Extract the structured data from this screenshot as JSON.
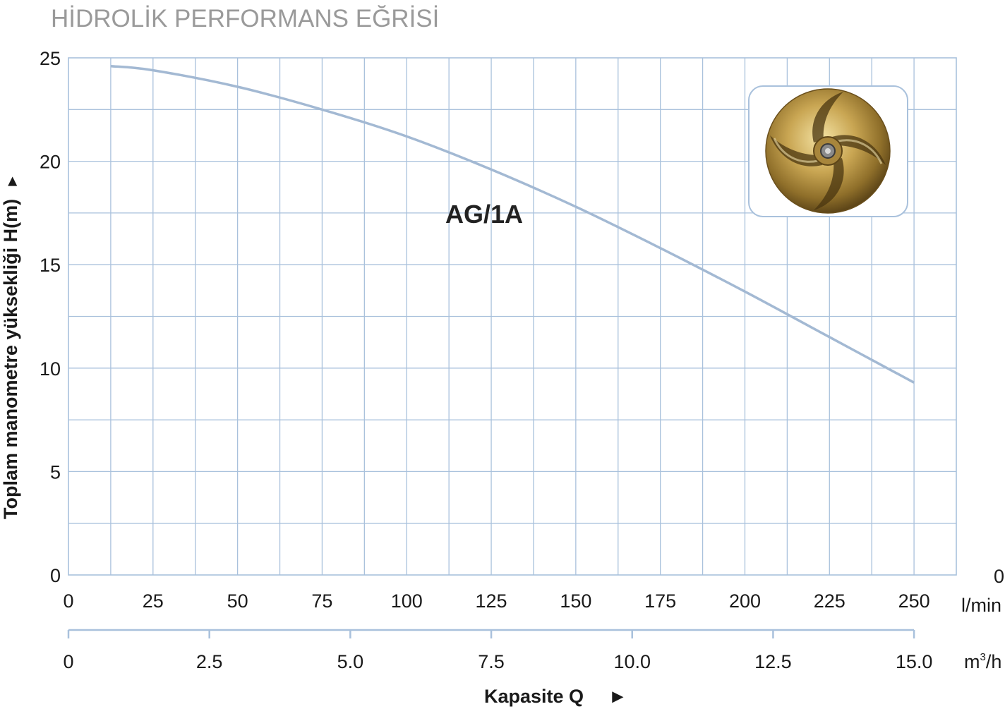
{
  "title": "HİDROLİK PERFORMANS EĞRİSİ",
  "colors": {
    "grid": "#a9c1dc",
    "curve": "#a3b9d3",
    "title": "#9a9a9a",
    "text": "#1a1a1a"
  },
  "chart_data": {
    "type": "line",
    "title": "HİDROLİK PERFORMANS EĞRİSİ",
    "ylabel": "Toplam manometre yüksekliği H(m)",
    "ylabel_arrow": "►",
    "xlabel": "Kapasite Q",
    "xlabel_arrow": "►",
    "x_unit": "l/min",
    "x2_unit_base": "m",
    "x2_unit_sup": "3",
    "x2_unit_tail": "/h",
    "x_zero_right": "0",
    "xlim": [
      0,
      262.5
    ],
    "ylim": [
      0,
      25
    ],
    "grid": true,
    "y_ticks": [
      "0",
      "5",
      "10",
      "15",
      "20",
      "25"
    ],
    "x_ticks": [
      "0",
      "25",
      "50",
      "75",
      "100",
      "125",
      "150",
      "175",
      "200",
      "225",
      "250"
    ],
    "x2_ticks": [
      "0",
      "2.5",
      "5.0",
      "7.5",
      "10.0",
      "12.5",
      "15.0"
    ],
    "series": [
      {
        "name": "AG/1A",
        "x": [
          12.5,
          25,
          50,
          75,
          100,
          125,
          150,
          175,
          200,
          225,
          250
        ],
        "y": [
          24.6,
          24.4,
          23.6,
          22.5,
          21.2,
          19.6,
          17.8,
          15.8,
          13.7,
          11.5,
          9.3
        ]
      }
    ]
  },
  "impeller_image": "brass-impeller-icon"
}
